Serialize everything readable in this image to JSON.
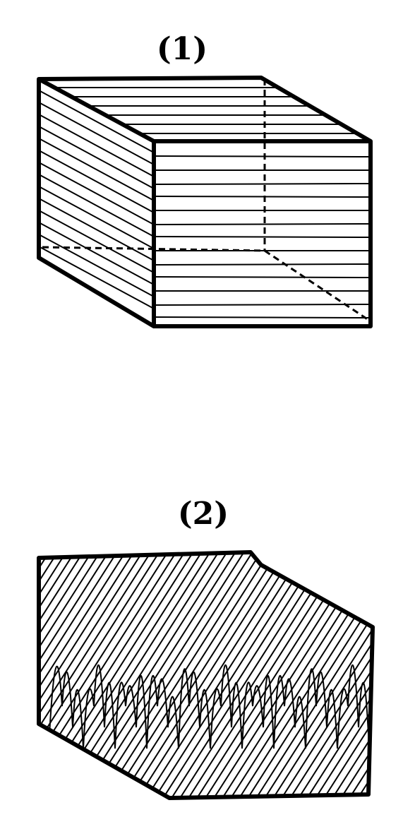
{
  "figures": [
    {
      "label": "(1)"
    },
    {
      "label": "(2)"
    }
  ]
}
